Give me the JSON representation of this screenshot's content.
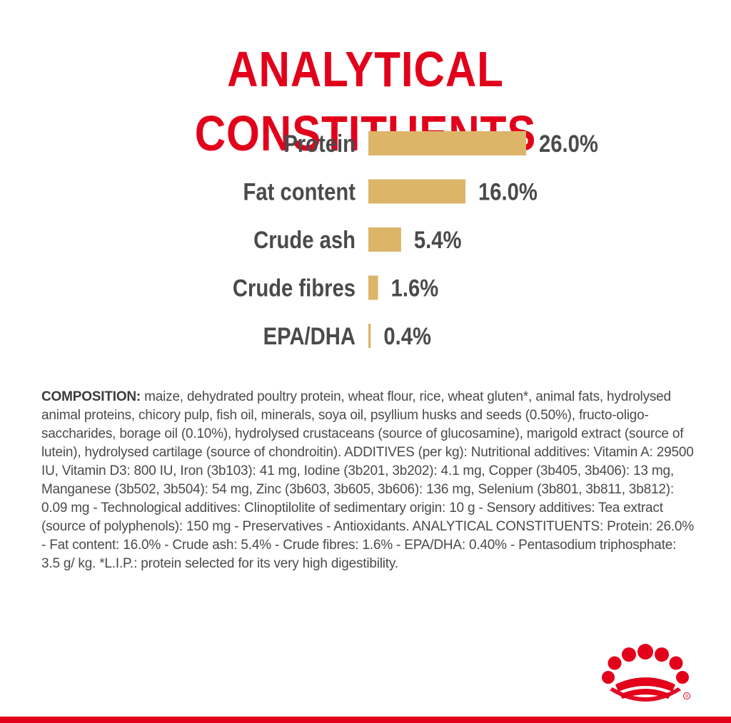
{
  "title": "ANALYTICAL CONSTITUENTS",
  "chart_data": {
    "type": "bar",
    "orientation": "horizontal",
    "categories": [
      "Protein",
      "Fat content",
      "Crude ash",
      "Crude fibres",
      "EPA/DHA"
    ],
    "values": [
      26.0,
      16.0,
      5.4,
      1.6,
      0.4
    ],
    "value_labels": [
      "26.0%",
      "16.0%",
      "5.4%",
      "1.6%",
      "0.4%"
    ],
    "bar_color": "#dcb569",
    "xlim": [
      0,
      26.0
    ],
    "grid": false,
    "legend": "none"
  },
  "composition": {
    "lead": "COMPOSITION:",
    "text": " maize, dehydrated poultry protein, wheat flour, rice, wheat gluten*, animal fats, hydrolysed animal proteins, chicory pulp, fish oil, minerals, soya oil, psyllium husks and seeds (0.50%), fructo-oligo-saccharides, borage oil (0.10%), hydrolysed crustaceans (source of glucosamine), marigold extract (source of lutein), hydrolysed cartilage (source of chondroitin). ADDITIVES (per kg): Nutritional additives: Vitamin A: 29500 IU, Vitamin D3: 800 IU, Iron (3b103): 41 mg, Iodine (3b201, 3b202): 4.1 mg, Copper (3b405, 3b406): 13 mg, Manganese (3b502, 3b504): 54 mg, Zinc (3b603, 3b605, 3b606): 136 mg, Selenium (3b801, 3b811, 3b812): 0.09 mg - Technological additives: Clinoptilolite of sedimentary origin: 10 g - Sensory additives: Tea extract (source of polyphenols): 150 mg - Preservatives - Antioxidants. ANALYTICAL CONSTITUENTS: Protein: 26.0% - Fat content: 16.0% - Crude ash: 5.4% - Crude fibres: 1.6% - EPA/DHA: 0.40% - Pentasodium triphosphate: 3.5 g/ kg. *L.I.P.: protein selected for its very high digestibility."
  },
  "brand": {
    "logo_icon": "crown-icon",
    "registered_mark": "®",
    "accent_color": "#e2001a"
  }
}
